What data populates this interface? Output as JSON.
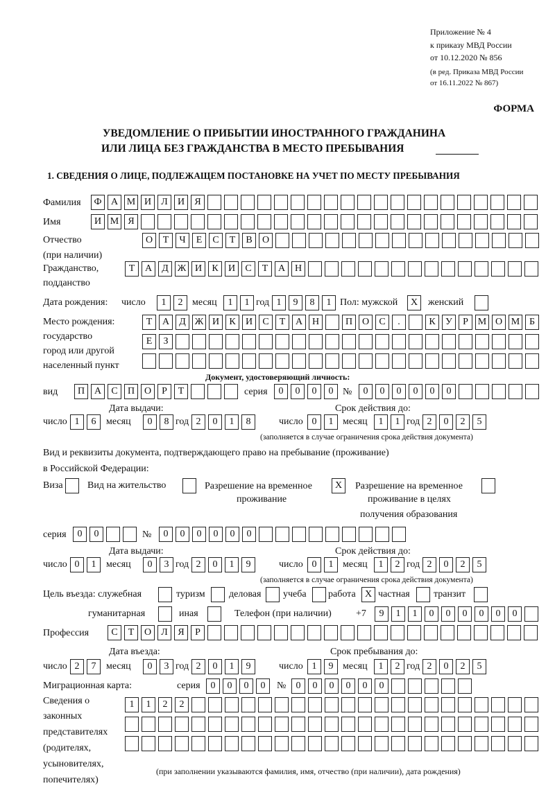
{
  "header": {
    "appendix": "Приложение № 4",
    "order": "к приказу МВД России",
    "order_date": "от 10.12.2020 № 856",
    "revision_1": "(в ред. Приказа МВД России",
    "revision_2": "от 16.11.2022 № 867)",
    "form_label": "ФОРМА",
    "title_1": "УВЕДОМЛЕНИЕ О ПРИБЫТИИ ИНОСТРАННОГО ГРАЖДАНИНА",
    "title_2": "ИЛИ ЛИЦА БЕЗ ГРАЖДАНСТВА В МЕСТО ПРЕБЫВАНИЯ",
    "section_1": "1. СВЕДЕНИЯ О ЛИЦЕ, ПОДЛЕЖАЩЕМ ПОСТАНОВКЕ НА УЧЕТ ПО МЕСТУ ПРЕБЫВАНИЯ"
  },
  "person": {
    "surname_label": "Фамилия",
    "surname": [
      "Ф",
      "А",
      "М",
      "И",
      "Л",
      "И",
      "Я",
      "",
      "",
      "",
      "",
      "",
      "",
      "",
      "",
      "",
      "",
      "",
      "",
      "",
      "",
      "",
      "",
      "",
      "",
      "",
      ""
    ],
    "name_label": "Имя",
    "name": [
      "И",
      "М",
      "Я",
      "",
      "",
      "",
      "",
      "",
      "",
      "",
      "",
      "",
      "",
      "",
      "",
      "",
      "",
      "",
      "",
      "",
      "",
      "",
      "",
      "",
      "",
      "",
      ""
    ],
    "patronymic_label_1": "Отчество",
    "patronymic_label_2": "(при наличии)",
    "patronymic": [
      "О",
      "Т",
      "Ч",
      "Е",
      "С",
      "Т",
      "В",
      "О",
      "",
      "",
      "",
      "",
      "",
      "",
      "",
      "",
      "",
      "",
      "",
      "",
      "",
      "",
      "",
      ""
    ],
    "citizenship_label_1": "Гражданство,",
    "citizenship_label_2": "подданство",
    "citizenship": [
      "Т",
      "А",
      "Д",
      "Ж",
      "И",
      "К",
      "И",
      "С",
      "Т",
      "А",
      "Н",
      "",
      "",
      "",
      "",
      "",
      "",
      "",
      "",
      "",
      "",
      "",
      "",
      "",
      ""
    ],
    "birth_date_label": "Дата рождения:",
    "day_label": "число",
    "month_label": "месяц",
    "year_label": "год",
    "birth_day": [
      "1",
      "2"
    ],
    "birth_month": [
      "1",
      "1"
    ],
    "birth_year": [
      "1",
      "9",
      "8",
      "1"
    ],
    "sex_male_label": "Пол: мужской",
    "sex_male": [
      "X"
    ],
    "sex_female_label": "женский",
    "sex_female": [
      ""
    ],
    "birthplace_label_1": "Место рождения:",
    "birthplace_label_2": "государство",
    "birthplace_label_3": "город или другой",
    "birthplace_label_4": "населенный пункт",
    "birthplace_1": [
      "Т",
      "А",
      "Д",
      "Ж",
      "И",
      "К",
      "И",
      "С",
      "Т",
      "А",
      "Н",
      "",
      "П",
      "О",
      "С",
      ".",
      "",
      "К",
      "У",
      "Р",
      "М",
      "О",
      "М",
      "Б"
    ],
    "birthplace_2": [
      "Е",
      "З",
      "",
      "",
      "",
      "",
      "",
      "",
      "",
      "",
      "",
      "",
      "",
      "",
      "",
      "",
      "",
      "",
      "",
      "",
      "",
      "",
      "",
      ""
    ],
    "birthplace_3": [
      "",
      "",
      "",
      "",
      "",
      "",
      "",
      "",
      "",
      "",
      "",
      "",
      "",
      "",
      "",
      "",
      "",
      "",
      "",
      "",
      "",
      "",
      "",
      ""
    ]
  },
  "id_doc": {
    "heading": "Документ, удостоверяющий личность:",
    "type_label": "вид",
    "type": [
      "П",
      "А",
      "С",
      "П",
      "О",
      "Р",
      "Т",
      "",
      "",
      ""
    ],
    "series_label": "серия",
    "series": [
      "0",
      "0",
      "0",
      "0"
    ],
    "number_label": "№",
    "number": [
      "0",
      "0",
      "0",
      "0",
      "0",
      "0",
      "",
      "",
      "",
      "",
      ""
    ],
    "issue_label": "Дата выдачи:",
    "valid_label": "Срок действия до:",
    "issue_day": [
      "1",
      "6"
    ],
    "issue_month": [
      "0",
      "8"
    ],
    "issue_year": [
      "2",
      "0",
      "1",
      "8"
    ],
    "valid_day": [
      "0",
      "1"
    ],
    "valid_month": [
      "1",
      "1"
    ],
    "valid_year": [
      "2",
      "0",
      "2",
      "5"
    ],
    "note": "(заполняется в случае ограничения срока действия документа)"
  },
  "stay_doc": {
    "heading_1": "Вид и реквизиты документа, подтверждающего право на пребывание (проживание)",
    "heading_2": "в Российской Федерации:",
    "visa_label": "Виза",
    "visa": [
      ""
    ],
    "residence_label": "Вид на жительство",
    "residence": [
      ""
    ],
    "temp_label_1": "Разрешение на временное",
    "temp_label_2": "проживание",
    "temp": [
      "X"
    ],
    "edu_label_1": "Разрешение на временное",
    "edu_label_2": "проживание в целях",
    "edu_label_3": "получения образования",
    "edu": [
      ""
    ],
    "series_label": "серия",
    "series": [
      "0",
      "0",
      "",
      ""
    ],
    "number_label": "№",
    "number": [
      "0",
      "0",
      "0",
      "0",
      "0",
      "0",
      "",
      "",
      "",
      "",
      "",
      "",
      "",
      "",
      ""
    ],
    "issue_label": "Дата выдачи:",
    "valid_label": "Срок действия до:",
    "issue_day": [
      "0",
      "1"
    ],
    "issue_month": [
      "0",
      "3"
    ],
    "issue_year": [
      "2",
      "0",
      "1",
      "9"
    ],
    "valid_day": [
      "0",
      "1"
    ],
    "valid_month": [
      "1",
      "2"
    ],
    "valid_year": [
      "2",
      "0",
      "2",
      "5"
    ],
    "note": "(заполняется в случае ограничения срока действия документа)"
  },
  "purpose": {
    "label": "Цель въезда: служебная",
    "official": [
      ""
    ],
    "tourism_label": "туризм",
    "tourism": [
      ""
    ],
    "business_label": "деловая",
    "business": [
      ""
    ],
    "study_label": "учеба",
    "study": [
      ""
    ],
    "work_label": "работа",
    "work": [
      "X"
    ],
    "private_label": "частная",
    "private": [
      ""
    ],
    "transit_label": "транзит",
    "transit": [
      ""
    ],
    "humanitarian_label": "гуманитарная",
    "humanitarian": [
      ""
    ],
    "other_label": "иная",
    "other": [
      ""
    ],
    "phone_label": "Телефон (при наличии)",
    "phone_prefix": "+7",
    "phone": [
      "9",
      "1",
      "1",
      "0",
      "0",
      "0",
      "0",
      "0",
      "0",
      ""
    ]
  },
  "profession": {
    "label": "Профессия",
    "value": [
      "С",
      "Т",
      "О",
      "Л",
      "Я",
      "Р",
      "",
      "",
      "",
      "",
      "",
      "",
      "",
      "",
      "",
      "",
      "",
      "",
      "",
      "",
      "",
      "",
      "",
      "",
      "",
      ""
    ]
  },
  "entry": {
    "entry_label": "Дата въезда:",
    "stay_until_label": "Срок пребывания до:",
    "entry_day": [
      "2",
      "7"
    ],
    "entry_month": [
      "0",
      "3"
    ],
    "entry_year": [
      "2",
      "0",
      "1",
      "9"
    ],
    "until_day": [
      "1",
      "9"
    ],
    "until_month": [
      "1",
      "2"
    ],
    "until_year": [
      "2",
      "0",
      "2",
      "5"
    ]
  },
  "migration_card": {
    "label": "Миграционная карта:",
    "series_label": "серия",
    "series": [
      "0",
      "0",
      "0",
      "0"
    ],
    "number_label": "№",
    "number": [
      "0",
      "0",
      "0",
      "0",
      "0",
      "0",
      "",
      "",
      "",
      "",
      ""
    ]
  },
  "representatives": {
    "label_1": "Сведения о",
    "label_2": "законных",
    "label_3": "представителях",
    "label_4": "(родителях,",
    "label_5": "усыновителях,",
    "label_6": "попечителях)",
    "row_1": [
      "1",
      "1",
      "2",
      "2",
      "",
      "",
      "",
      "",
      "",
      "",
      "",
      "",
      "",
      "",
      "",
      "",
      "",
      "",
      "",
      "",
      "",
      "",
      "",
      "",
      ""
    ],
    "row_2": [
      "",
      "",
      "",
      "",
      "",
      "",
      "",
      "",
      "",
      "",
      "",
      "",
      "",
      "",
      "",
      "",
      "",
      "",
      "",
      "",
      "",
      "",
      "",
      "",
      ""
    ],
    "row_3": [
      "",
      "",
      "",
      "",
      "",
      "",
      "",
      "",
      "",
      "",
      "",
      "",
      "",
      "",
      "",
      "",
      "",
      "",
      "",
      "",
      "",
      "",
      "",
      "",
      ""
    ],
    "note": "(при заполнении указываются фамилия, имя, отчество (при наличии), дата рождения)"
  }
}
